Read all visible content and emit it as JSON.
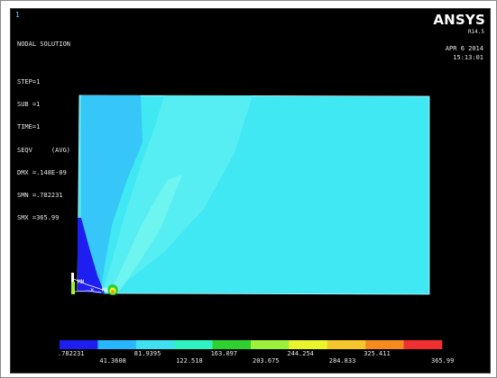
{
  "window_number": "1",
  "logo": {
    "text": "ANSYS",
    "release": "R14.5"
  },
  "date": "APR  6 2014",
  "time": "15:13:01",
  "info_lines": [
    "NODAL SOLUTION",
    "",
    "STEP=1",
    "SUB =1",
    "TIME=1",
    "SEQV     (AVG)",
    "DMX =.148E-09",
    "SMN =.782231",
    "SMX =365.99"
  ],
  "markers": {
    "mn": "MN",
    "mx": "MX"
  },
  "legend": {
    "colors": [
      "#1e1ef0",
      "#27b6ff",
      "#3fe0f0",
      "#2ff3c0",
      "#2fd12f",
      "#9cf23a",
      "#e8f52d",
      "#f5c72d",
      "#f58a1e",
      "#f03030"
    ],
    "labels_top": [
      ".782231",
      "81.9395",
      "163.097",
      "244.254",
      "325.411"
    ],
    "labels_bottom": [
      "41.3608",
      "122.518",
      "203.675",
      "284.833",
      "365.99"
    ]
  },
  "colors": {
    "background": "#000000",
    "contour_low": "#1e1ef0",
    "contour_main": "#3fe8f3",
    "contour_light": "#5ff2f0",
    "contour_mid": "#27b6ff"
  }
}
